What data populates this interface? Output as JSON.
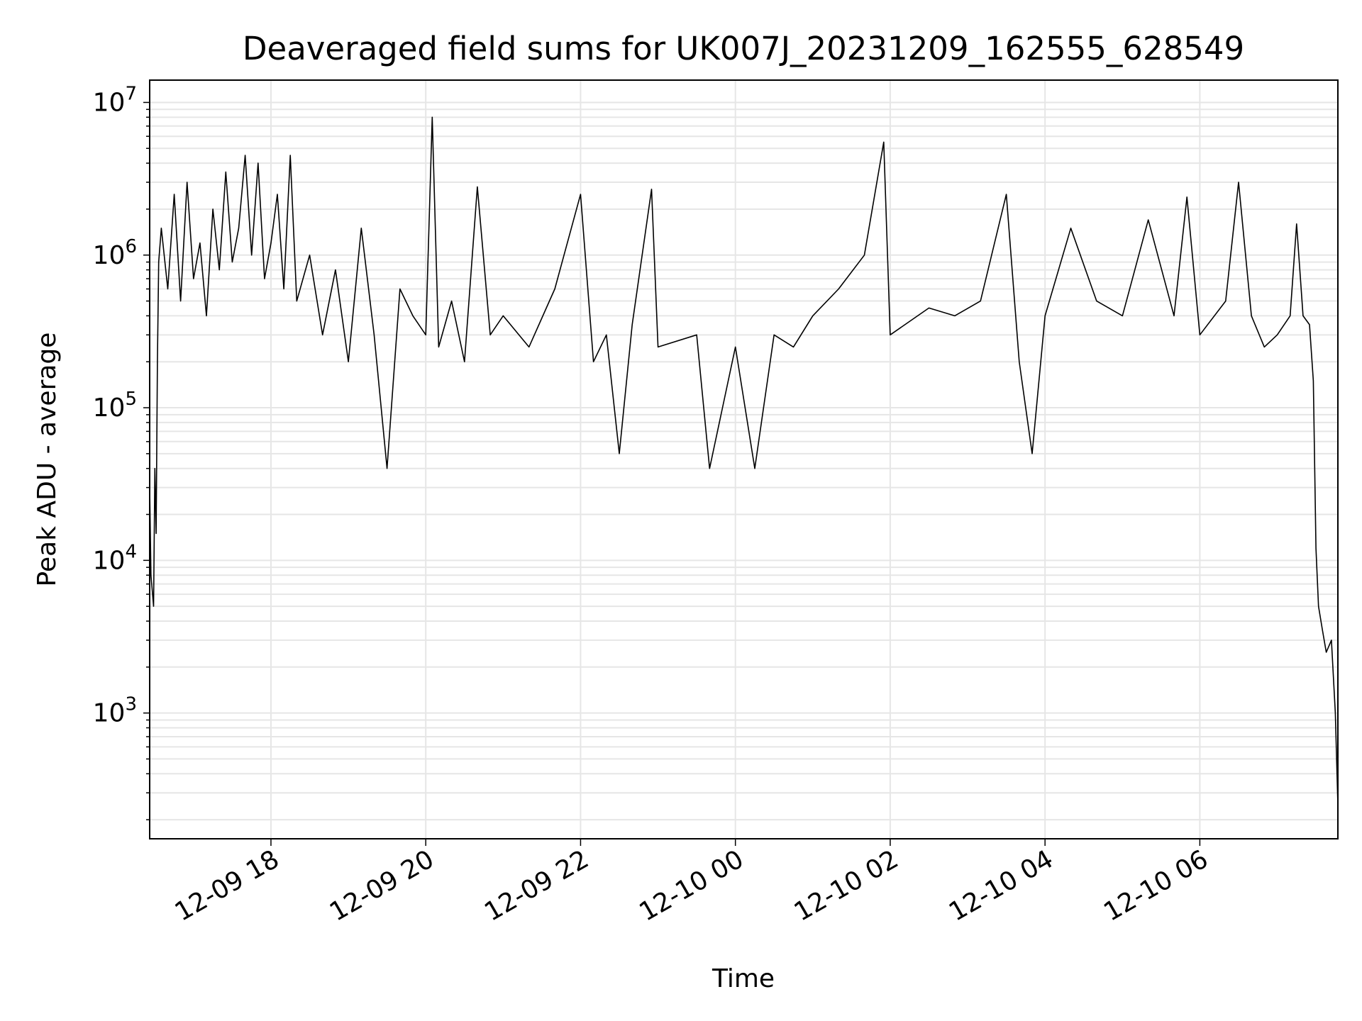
{
  "chart_data": {
    "type": "line",
    "title": "Deaveraged field sums for UK007J_20231209_162555_628549",
    "xlabel": "Time",
    "ylabel": "Peak ADU - average",
    "y_scale": "log",
    "ylim": [
      150,
      14000000
    ],
    "xlim": [
      "2023-12-09 16:26",
      "2023-12-10 07:47"
    ],
    "grid": true,
    "line_color": "#000000",
    "grid_color": "#e6e6e6",
    "x_ticks": [
      {
        "value": "2023-12-09 18:00",
        "label": "12-09 18"
      },
      {
        "value": "2023-12-09 20:00",
        "label": "12-09 20"
      },
      {
        "value": "2023-12-09 22:00",
        "label": "12-09 22"
      },
      {
        "value": "2023-12-10 00:00",
        "label": "12-10 00"
      },
      {
        "value": "2023-12-10 02:00",
        "label": "12-10 02"
      },
      {
        "value": "2023-12-10 04:00",
        "label": "12-10 04"
      },
      {
        "value": "2023-12-10 06:00",
        "label": "12-10 06"
      }
    ],
    "y_ticks": [
      {
        "value": 1000,
        "base": "10",
        "exp": "3"
      },
      {
        "value": 10000,
        "base": "10",
        "exp": "4"
      },
      {
        "value": 100000,
        "base": "10",
        "exp": "5"
      },
      {
        "value": 1000000,
        "base": "10",
        "exp": "6"
      },
      {
        "value": 10000000,
        "base": "10",
        "exp": "7"
      }
    ],
    "series": [
      {
        "points": [
          [
            "2023-12-09 16:26",
            30000
          ],
          [
            "2023-12-09 16:27",
            8000
          ],
          [
            "2023-12-09 16:29",
            5000
          ],
          [
            "2023-12-09 16:30",
            40000
          ],
          [
            "2023-12-09 16:31",
            15000
          ],
          [
            "2023-12-09 16:32",
            200000
          ],
          [
            "2023-12-09 16:33",
            900000
          ],
          [
            "2023-12-09 16:35",
            1500000
          ],
          [
            "2023-12-09 16:40",
            600000
          ],
          [
            "2023-12-09 16:45",
            2500000
          ],
          [
            "2023-12-09 16:50",
            500000
          ],
          [
            "2023-12-09 16:55",
            3000000
          ],
          [
            "2023-12-09 17:00",
            700000
          ],
          [
            "2023-12-09 17:05",
            1200000
          ],
          [
            "2023-12-09 17:10",
            400000
          ],
          [
            "2023-12-09 17:15",
            2000000
          ],
          [
            "2023-12-09 17:20",
            800000
          ],
          [
            "2023-12-09 17:25",
            3500000
          ],
          [
            "2023-12-09 17:30",
            900000
          ],
          [
            "2023-12-09 17:35",
            1500000
          ],
          [
            "2023-12-09 17:40",
            4500000
          ],
          [
            "2023-12-09 17:45",
            1000000
          ],
          [
            "2023-12-09 17:50",
            4000000
          ],
          [
            "2023-12-09 17:55",
            700000
          ],
          [
            "2023-12-09 18:00",
            1200000
          ],
          [
            "2023-12-09 18:05",
            2500000
          ],
          [
            "2023-12-09 18:10",
            600000
          ],
          [
            "2023-12-09 18:15",
            4500000
          ],
          [
            "2023-12-09 18:20",
            500000
          ],
          [
            "2023-12-09 18:30",
            1000000
          ],
          [
            "2023-12-09 18:40",
            300000
          ],
          [
            "2023-12-09 18:50",
            800000
          ],
          [
            "2023-12-09 19:00",
            200000
          ],
          [
            "2023-12-09 19:10",
            1500000
          ],
          [
            "2023-12-09 19:20",
            300000
          ],
          [
            "2023-12-09 19:30",
            40000
          ],
          [
            "2023-12-09 19:40",
            600000
          ],
          [
            "2023-12-09 19:50",
            400000
          ],
          [
            "2023-12-09 20:00",
            300000
          ],
          [
            "2023-12-09 20:05",
            8000000
          ],
          [
            "2023-12-09 20:10",
            250000
          ],
          [
            "2023-12-09 20:20",
            500000
          ],
          [
            "2023-12-09 20:30",
            200000
          ],
          [
            "2023-12-09 20:40",
            2800000
          ],
          [
            "2023-12-09 20:50",
            300000
          ],
          [
            "2023-12-09 21:00",
            400000
          ],
          [
            "2023-12-09 21:20",
            250000
          ],
          [
            "2023-12-09 21:40",
            600000
          ],
          [
            "2023-12-09 22:00",
            2500000
          ],
          [
            "2023-12-09 22:10",
            200000
          ],
          [
            "2023-12-09 22:20",
            300000
          ],
          [
            "2023-12-09 22:30",
            50000
          ],
          [
            "2023-12-09 22:40",
            350000
          ],
          [
            "2023-12-09 22:55",
            2700000
          ],
          [
            "2023-12-09 23:00",
            250000
          ],
          [
            "2023-12-09 23:30",
            300000
          ],
          [
            "2023-12-09 23:40",
            40000
          ],
          [
            "2023-12-10 00:00",
            250000
          ],
          [
            "2023-12-10 00:15",
            40000
          ],
          [
            "2023-12-10 00:30",
            300000
          ],
          [
            "2023-12-10 00:45",
            250000
          ],
          [
            "2023-12-10 01:00",
            400000
          ],
          [
            "2023-12-10 01:20",
            600000
          ],
          [
            "2023-12-10 01:40",
            1000000
          ],
          [
            "2023-12-10 01:55",
            5500000
          ],
          [
            "2023-12-10 02:00",
            300000
          ],
          [
            "2023-12-10 02:30",
            450000
          ],
          [
            "2023-12-10 02:50",
            400000
          ],
          [
            "2023-12-10 03:10",
            500000
          ],
          [
            "2023-12-10 03:30",
            2500000
          ],
          [
            "2023-12-10 03:40",
            200000
          ],
          [
            "2023-12-10 03:50",
            50000
          ],
          [
            "2023-12-10 04:00",
            400000
          ],
          [
            "2023-12-10 04:20",
            1500000
          ],
          [
            "2023-12-10 04:40",
            500000
          ],
          [
            "2023-12-10 05:00",
            400000
          ],
          [
            "2023-12-10 05:20",
            1700000
          ],
          [
            "2023-12-10 05:40",
            400000
          ],
          [
            "2023-12-10 05:50",
            2400000
          ],
          [
            "2023-12-10 06:00",
            300000
          ],
          [
            "2023-12-10 06:20",
            500000
          ],
          [
            "2023-12-10 06:30",
            3000000
          ],
          [
            "2023-12-10 06:40",
            400000
          ],
          [
            "2023-12-10 06:50",
            250000
          ],
          [
            "2023-12-10 07:00",
            300000
          ],
          [
            "2023-12-10 07:10",
            400000
          ],
          [
            "2023-12-10 07:15",
            1600000
          ],
          [
            "2023-12-10 07:20",
            400000
          ],
          [
            "2023-12-10 07:25",
            350000
          ],
          [
            "2023-12-10 07:28",
            150000
          ],
          [
            "2023-12-10 07:30",
            12000
          ],
          [
            "2023-12-10 07:32",
            5000
          ],
          [
            "2023-12-10 07:35",
            3500
          ],
          [
            "2023-12-10 07:38",
            2500
          ],
          [
            "2023-12-10 07:42",
            3000
          ],
          [
            "2023-12-10 07:45",
            1000
          ],
          [
            "2023-12-10 07:47",
            250
          ]
        ]
      }
    ]
  }
}
